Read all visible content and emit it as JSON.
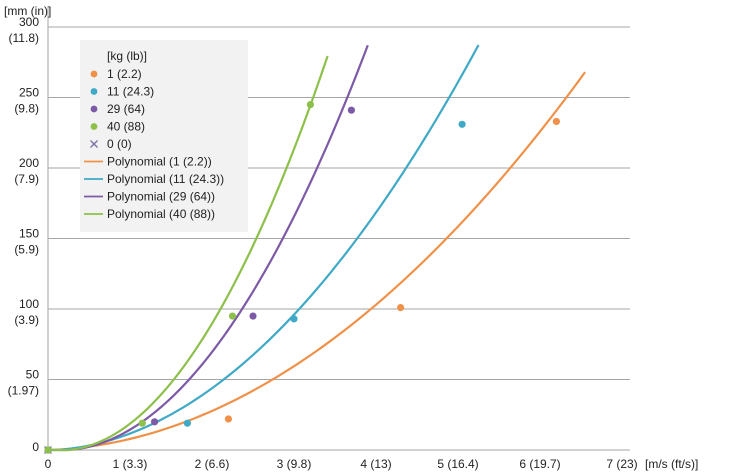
{
  "chart_data": {
    "type": "scatter",
    "x_axis": {
      "unit_label": "[m/s (ft/s)]",
      "range": [
        0,
        7
      ],
      "ticks": [
        {
          "value": 0,
          "label": "0"
        },
        {
          "value": 1,
          "label": "1 (3.3)"
        },
        {
          "value": 2,
          "label": "2 (6.6)"
        },
        {
          "value": 3,
          "label": "3 (9.8)"
        },
        {
          "value": 4,
          "label": "4 (13)"
        },
        {
          "value": 5,
          "label": "5 (16.4)"
        },
        {
          "value": 6,
          "label": "6 (19.7)"
        },
        {
          "value": 7,
          "label": "7 (23)"
        }
      ]
    },
    "y_axis": {
      "unit_label": "[mm (in)]",
      "range": [
        0,
        300
      ],
      "ticks": [
        {
          "value": 0,
          "label": "0",
          "sub": ""
        },
        {
          "value": 50,
          "label": "50",
          "sub": "(1.97)"
        },
        {
          "value": 100,
          "label": "100",
          "sub": "(3.9)"
        },
        {
          "value": 150,
          "label": "150",
          "sub": "(5.9)"
        },
        {
          "value": 200,
          "label": "200",
          "sub": "(7.9)"
        },
        {
          "value": 250,
          "label": "250",
          "sub": "(9.8)"
        },
        {
          "value": 300,
          "label": "300",
          "sub": "(11.8)"
        }
      ]
    },
    "grid": "horizontal",
    "legend": {
      "title": "[kg (lb)]",
      "placement": "top-left"
    },
    "series": [
      {
        "name": "1 (2.2)",
        "color": "#f0914a",
        "points": [
          [
            0,
            0
          ],
          [
            2.2,
            22
          ],
          [
            4.3,
            101
          ],
          [
            6.2,
            233
          ]
        ]
      },
      {
        "name": "11 (24.3)",
        "color": "#3fa9c6",
        "points": [
          [
            0,
            0
          ],
          [
            1.7,
            19
          ],
          [
            3.0,
            93
          ],
          [
            5.05,
            231
          ]
        ]
      },
      {
        "name": "29 (64)",
        "color": "#7d5aa6",
        "points": [
          [
            0,
            0
          ],
          [
            1.3,
            20
          ],
          [
            2.5,
            95
          ],
          [
            3.7,
            241
          ]
        ]
      },
      {
        "name": "40 (88)",
        "color": "#8dc04a",
        "points": [
          [
            0,
            0
          ],
          [
            1.15,
            19
          ],
          [
            2.25,
            95
          ],
          [
            3.2,
            245
          ]
        ]
      }
    ],
    "zero_series": {
      "name": "0 (0)",
      "color": "#7d6fa6",
      "marker": "x",
      "points": [
        [
          0,
          0
        ]
      ]
    },
    "trendlines": [
      {
        "name": "Polynomial (1 (2.2))",
        "color": "#f0914a",
        "a": 5.94,
        "b": 2.02,
        "c": -0.1,
        "x_end": 6.55
      },
      {
        "name": "Polynomial (11 (24.3))",
        "color": "#3fa9c6",
        "a": 10.07,
        "b": 1.9,
        "c": -0.3,
        "x_end": 5.25
      },
      {
        "name": "Polynomial (29 (64))",
        "color": "#7d5aa6",
        "a": 20.5,
        "b": -6.44,
        "c": 0.36,
        "x_end": 3.9
      },
      {
        "name": "Polynomial (40 (88))",
        "color": "#8dc04a",
        "a": 26.4,
        "b": -8.22,
        "c": 0.47,
        "x_end": 3.41
      }
    ]
  }
}
